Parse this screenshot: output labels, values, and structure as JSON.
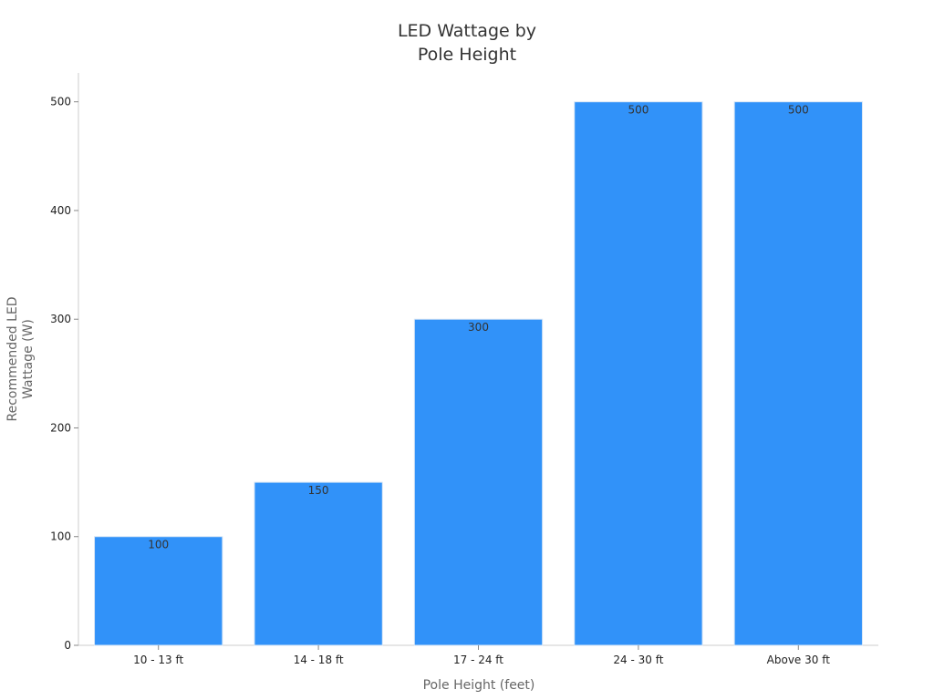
{
  "chart_data": {
    "type": "bar",
    "title": [
      "LED Wattage by",
      "Pole Height"
    ],
    "xlabel": "Pole Height (feet)",
    "ylabel": [
      "Recommended LED",
      "Wattage (W)"
    ],
    "categories": [
      "10 - 13 ft",
      "14 - 18 ft",
      "17 - 24 ft",
      "24 - 30 ft",
      "Above 30 ft"
    ],
    "values": [
      100,
      150,
      300,
      500,
      500
    ],
    "data_labels": [
      "100",
      "150",
      "300",
      "500",
      "500"
    ],
    "yticks": [
      0,
      100,
      200,
      300,
      400,
      500
    ],
    "ylim": [
      0,
      525
    ],
    "grid": false,
    "legend": "none",
    "bar_color": "#3192f9",
    "axis_color": "#cccccc"
  }
}
